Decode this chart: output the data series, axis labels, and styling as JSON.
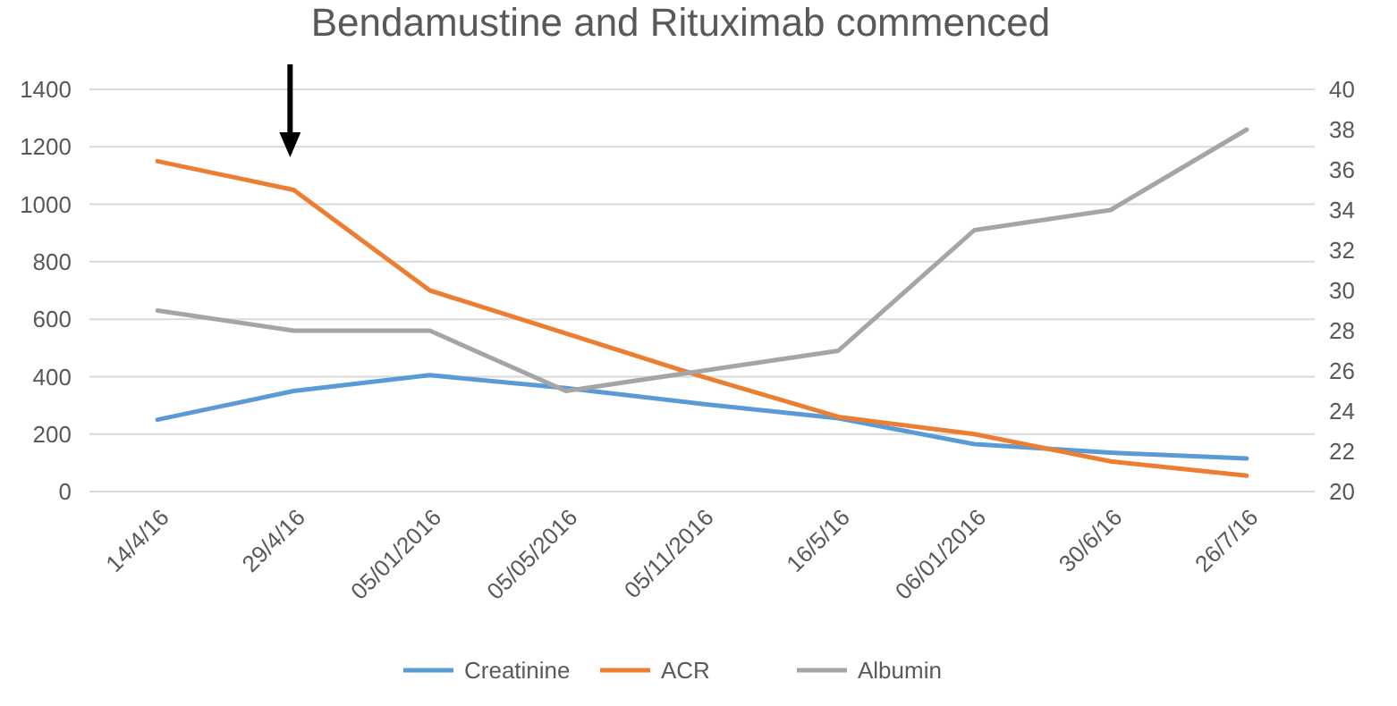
{
  "chart_data": {
    "type": "line",
    "title": "Bendamustine and Rituximab commenced",
    "categories": [
      "14/4/16",
      "29/4/16",
      "05/01/2016",
      "05/05/2016",
      "05/11/2016",
      "16/5/16",
      "06/01/2016",
      "30/6/16",
      "26/7/16"
    ],
    "series": [
      {
        "name": "Creatinine",
        "color": "#5b9bd5",
        "values": [
          250,
          350,
          405,
          360,
          305,
          255,
          165,
          135,
          115
        ]
      },
      {
        "name": "ACR",
        "color": "#ed7d31",
        "values": [
          1150,
          1050,
          700,
          550,
          400,
          260,
          200,
          105,
          55
        ]
      },
      {
        "name": "Albumin",
        "color": "#a5a5a5",
        "axis": "y2",
        "values": [
          29,
          28,
          28,
          25,
          26,
          27,
          33,
          34,
          38
        ]
      }
    ],
    "ylim": [
      0,
      1400
    ],
    "yticks": [
      0,
      200,
      400,
      600,
      800,
      1000,
      1200,
      1400
    ],
    "y2lim": [
      20,
      40
    ],
    "y2ticks": [
      20,
      22,
      24,
      26,
      28,
      30,
      32,
      34,
      36,
      38,
      40
    ],
    "grid": "y",
    "legend": "bottom",
    "marker": "none",
    "line_style": "solid"
  }
}
